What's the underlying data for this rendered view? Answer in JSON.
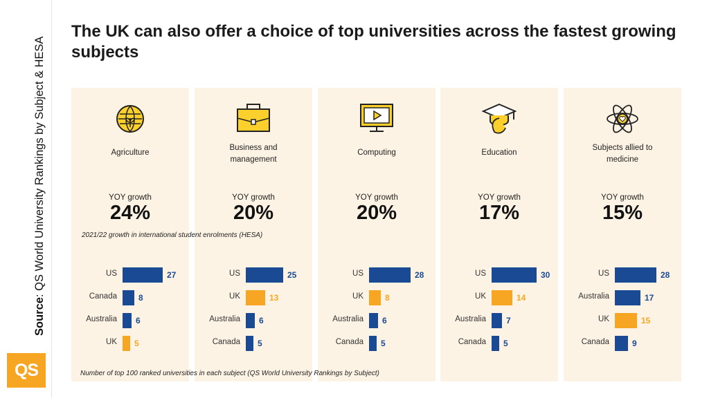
{
  "source": {
    "label": "Source",
    "text": ": QS World University Rankings by Subject & HESA"
  },
  "logo": "QS",
  "title": "The UK can also offer a choice of top universities across the fastest growing subjects",
  "colors": {
    "us": "#1b4a94",
    "uk": "#f6a623",
    "panel": "#fdf3e4",
    "icon_fill": "#fbd02d"
  },
  "notes": {
    "growth": "2021/22 growth in international student enrolments (HESA)",
    "ranking": "Number of top 100 ranked universities in each subject (QS World University Rankings by Subject)"
  },
  "panels": [
    {
      "category": [
        "Agriculture"
      ],
      "icon": "agriculture-icon",
      "yoy_label": "YOY growth",
      "yoy_value": "24%"
    },
    {
      "category": [
        "Business and",
        "management"
      ],
      "icon": "briefcase-icon",
      "yoy_label": "YOY growth",
      "yoy_value": "20%"
    },
    {
      "category": [
        "Computing"
      ],
      "icon": "computer-icon",
      "yoy_label": "YOY growth",
      "yoy_value": "20%"
    },
    {
      "category": [
        "Education"
      ],
      "icon": "graduation-cap-icon",
      "yoy_label": "YOY growth",
      "yoy_value": "17%"
    },
    {
      "category": [
        "Subjects allied to",
        "medicine"
      ],
      "icon": "atom-heart-icon",
      "yoy_label": "YOY growth",
      "yoy_value": "15%"
    }
  ],
  "chart_data": [
    {
      "type": "bar",
      "title": "Agriculture",
      "categories": [
        "US",
        "Canada",
        "Australia",
        "UK"
      ],
      "values": [
        27,
        8,
        6,
        5
      ],
      "highlight": "UK"
    },
    {
      "type": "bar",
      "title": "Business and management",
      "categories": [
        "US",
        "UK",
        "Australia",
        "Canada"
      ],
      "values": [
        25,
        13,
        6,
        5
      ],
      "highlight": "UK"
    },
    {
      "type": "bar",
      "title": "Computing",
      "categories": [
        "US",
        "UK",
        "Australia",
        "Canada"
      ],
      "values": [
        28,
        8,
        6,
        5
      ],
      "highlight": "UK"
    },
    {
      "type": "bar",
      "title": "Education",
      "categories": [
        "US",
        "UK",
        "Australia",
        "Canada"
      ],
      "values": [
        30,
        14,
        7,
        5
      ],
      "highlight": "UK"
    },
    {
      "type": "bar",
      "title": "Subjects allied to medicine",
      "categories": [
        "US",
        "Australia",
        "UK",
        "Canada"
      ],
      "values": [
        28,
        17,
        15,
        9
      ],
      "highlight": "UK"
    }
  ]
}
